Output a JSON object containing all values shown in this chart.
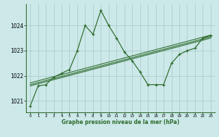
{
  "xlabel": "Graphe pression niveau de la mer (hPa)",
  "bg_color": "#cce8e8",
  "line_color": "#2d6b2d",
  "grid_color": "#aacccc",
  "xlim": [
    -0.5,
    23.5
  ],
  "ylim": [
    1020.55,
    1024.85
  ],
  "yticks": [
    1021,
    1022,
    1023,
    1024
  ],
  "xticks": [
    0,
    1,
    2,
    3,
    4,
    5,
    6,
    7,
    8,
    9,
    10,
    11,
    12,
    13,
    14,
    15,
    16,
    17,
    18,
    19,
    20,
    21,
    22,
    23
  ],
  "series1_x": [
    0,
    1,
    2,
    3,
    4,
    5,
    6,
    7,
    8,
    9,
    10,
    11,
    12,
    13,
    14,
    15,
    16,
    17,
    18,
    19,
    20,
    21,
    22,
    23
  ],
  "series1_y": [
    1020.8,
    1021.6,
    1021.65,
    1021.95,
    1022.1,
    1022.25,
    1023.0,
    1024.0,
    1023.65,
    1024.6,
    1024.0,
    1023.5,
    1022.95,
    1022.6,
    1022.15,
    1021.65,
    1021.65,
    1021.65,
    1022.5,
    1022.85,
    1023.0,
    1023.1,
    1023.5,
    1023.6
  ],
  "series2_x": [
    0,
    23
  ],
  "series2_y": [
    1021.6,
    1023.5
  ],
  "series3_x": [
    0,
    23
  ],
  "series3_y": [
    1021.65,
    1023.55
  ],
  "series4_x": [
    0,
    23
  ],
  "series4_y": [
    1021.72,
    1023.62
  ]
}
